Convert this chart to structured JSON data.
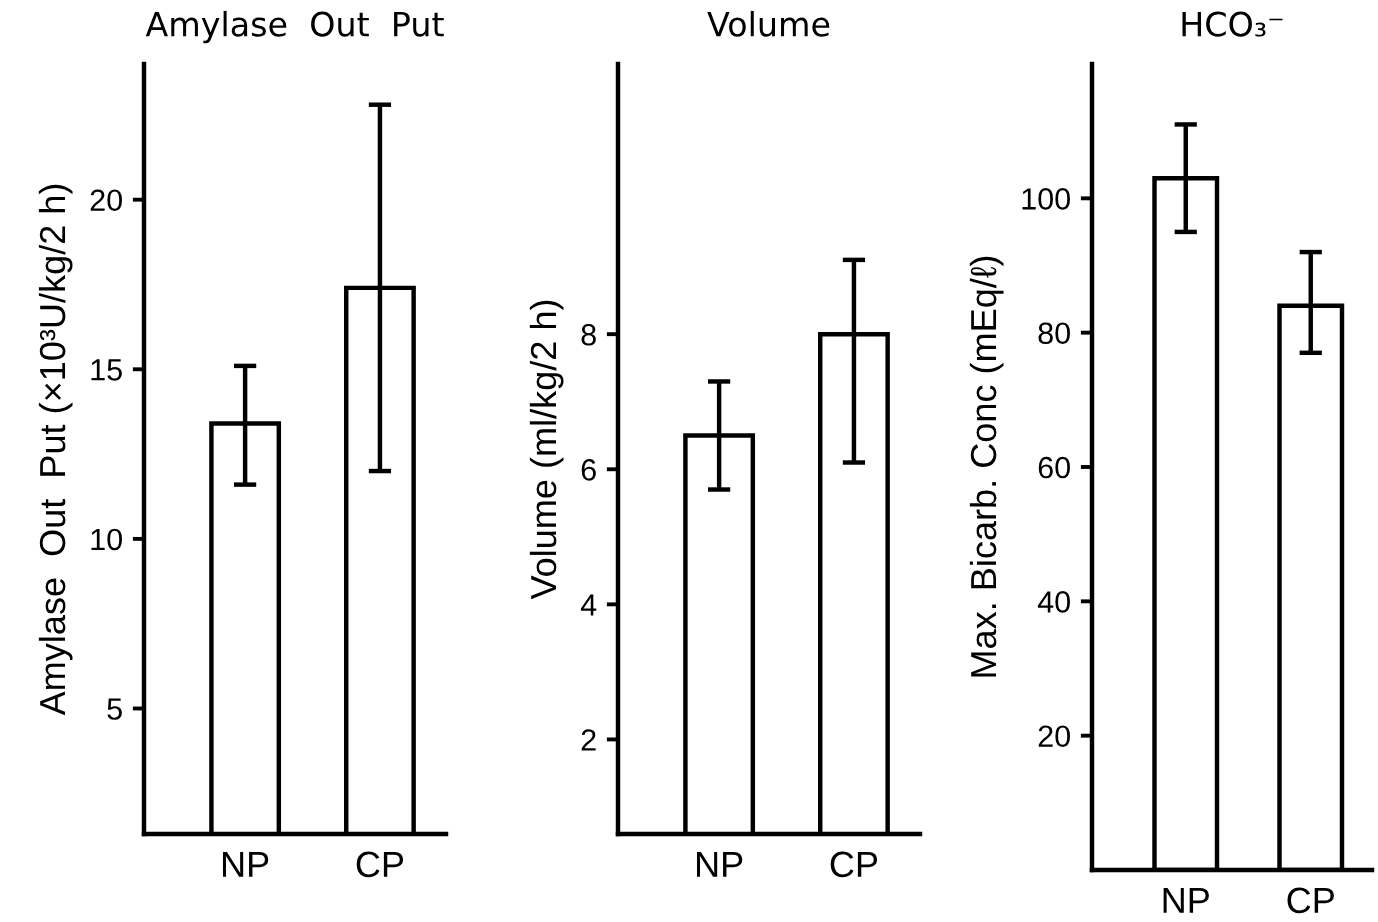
{
  "chart_data": [
    {
      "type": "bar",
      "title": "Amylase  Out  Put",
      "ylabel": "Amylase  Out  Put (×10³U/kg/2 h)",
      "categories": [
        "NP",
        "CP"
      ],
      "values": [
        13.4,
        17.4
      ],
      "errors": [
        [
          11.6,
          15.1
        ],
        [
          12.0,
          22.8
        ]
      ],
      "color": "#ffffff",
      "ylim": [
        1.3,
        24
      ],
      "yticks": [
        5,
        10,
        15,
        20
      ],
      "grid": false,
      "legend": false
    },
    {
      "type": "bar",
      "title": "Volume",
      "ylabel": "Volume (ml/kg/2 h)",
      "categories": [
        "NP",
        "CP"
      ],
      "values": [
        6.5,
        8.0
      ],
      "errors": [
        [
          5.7,
          7.3
        ],
        [
          6.1,
          9.1
        ]
      ],
      "color": "#ffffff",
      "ylim": [
        0.6,
        12
      ],
      "yticks": [
        2,
        4,
        6,
        8
      ],
      "grid": false,
      "legend": false
    },
    {
      "type": "bar",
      "title": "HCO₃⁻",
      "ylabel": "Max. Bicarb. Conc (mEq/ℓ)",
      "categories": [
        "NP",
        "CP"
      ],
      "values": [
        103,
        84
      ],
      "errors": [
        [
          95,
          111
        ],
        [
          77,
          92
        ]
      ],
      "color": "#ffffff",
      "ylim": [
        0,
        120
      ],
      "yticks": [
        20,
        40,
        60,
        80,
        100
      ],
      "grid": false,
      "legend": false
    }
  ]
}
